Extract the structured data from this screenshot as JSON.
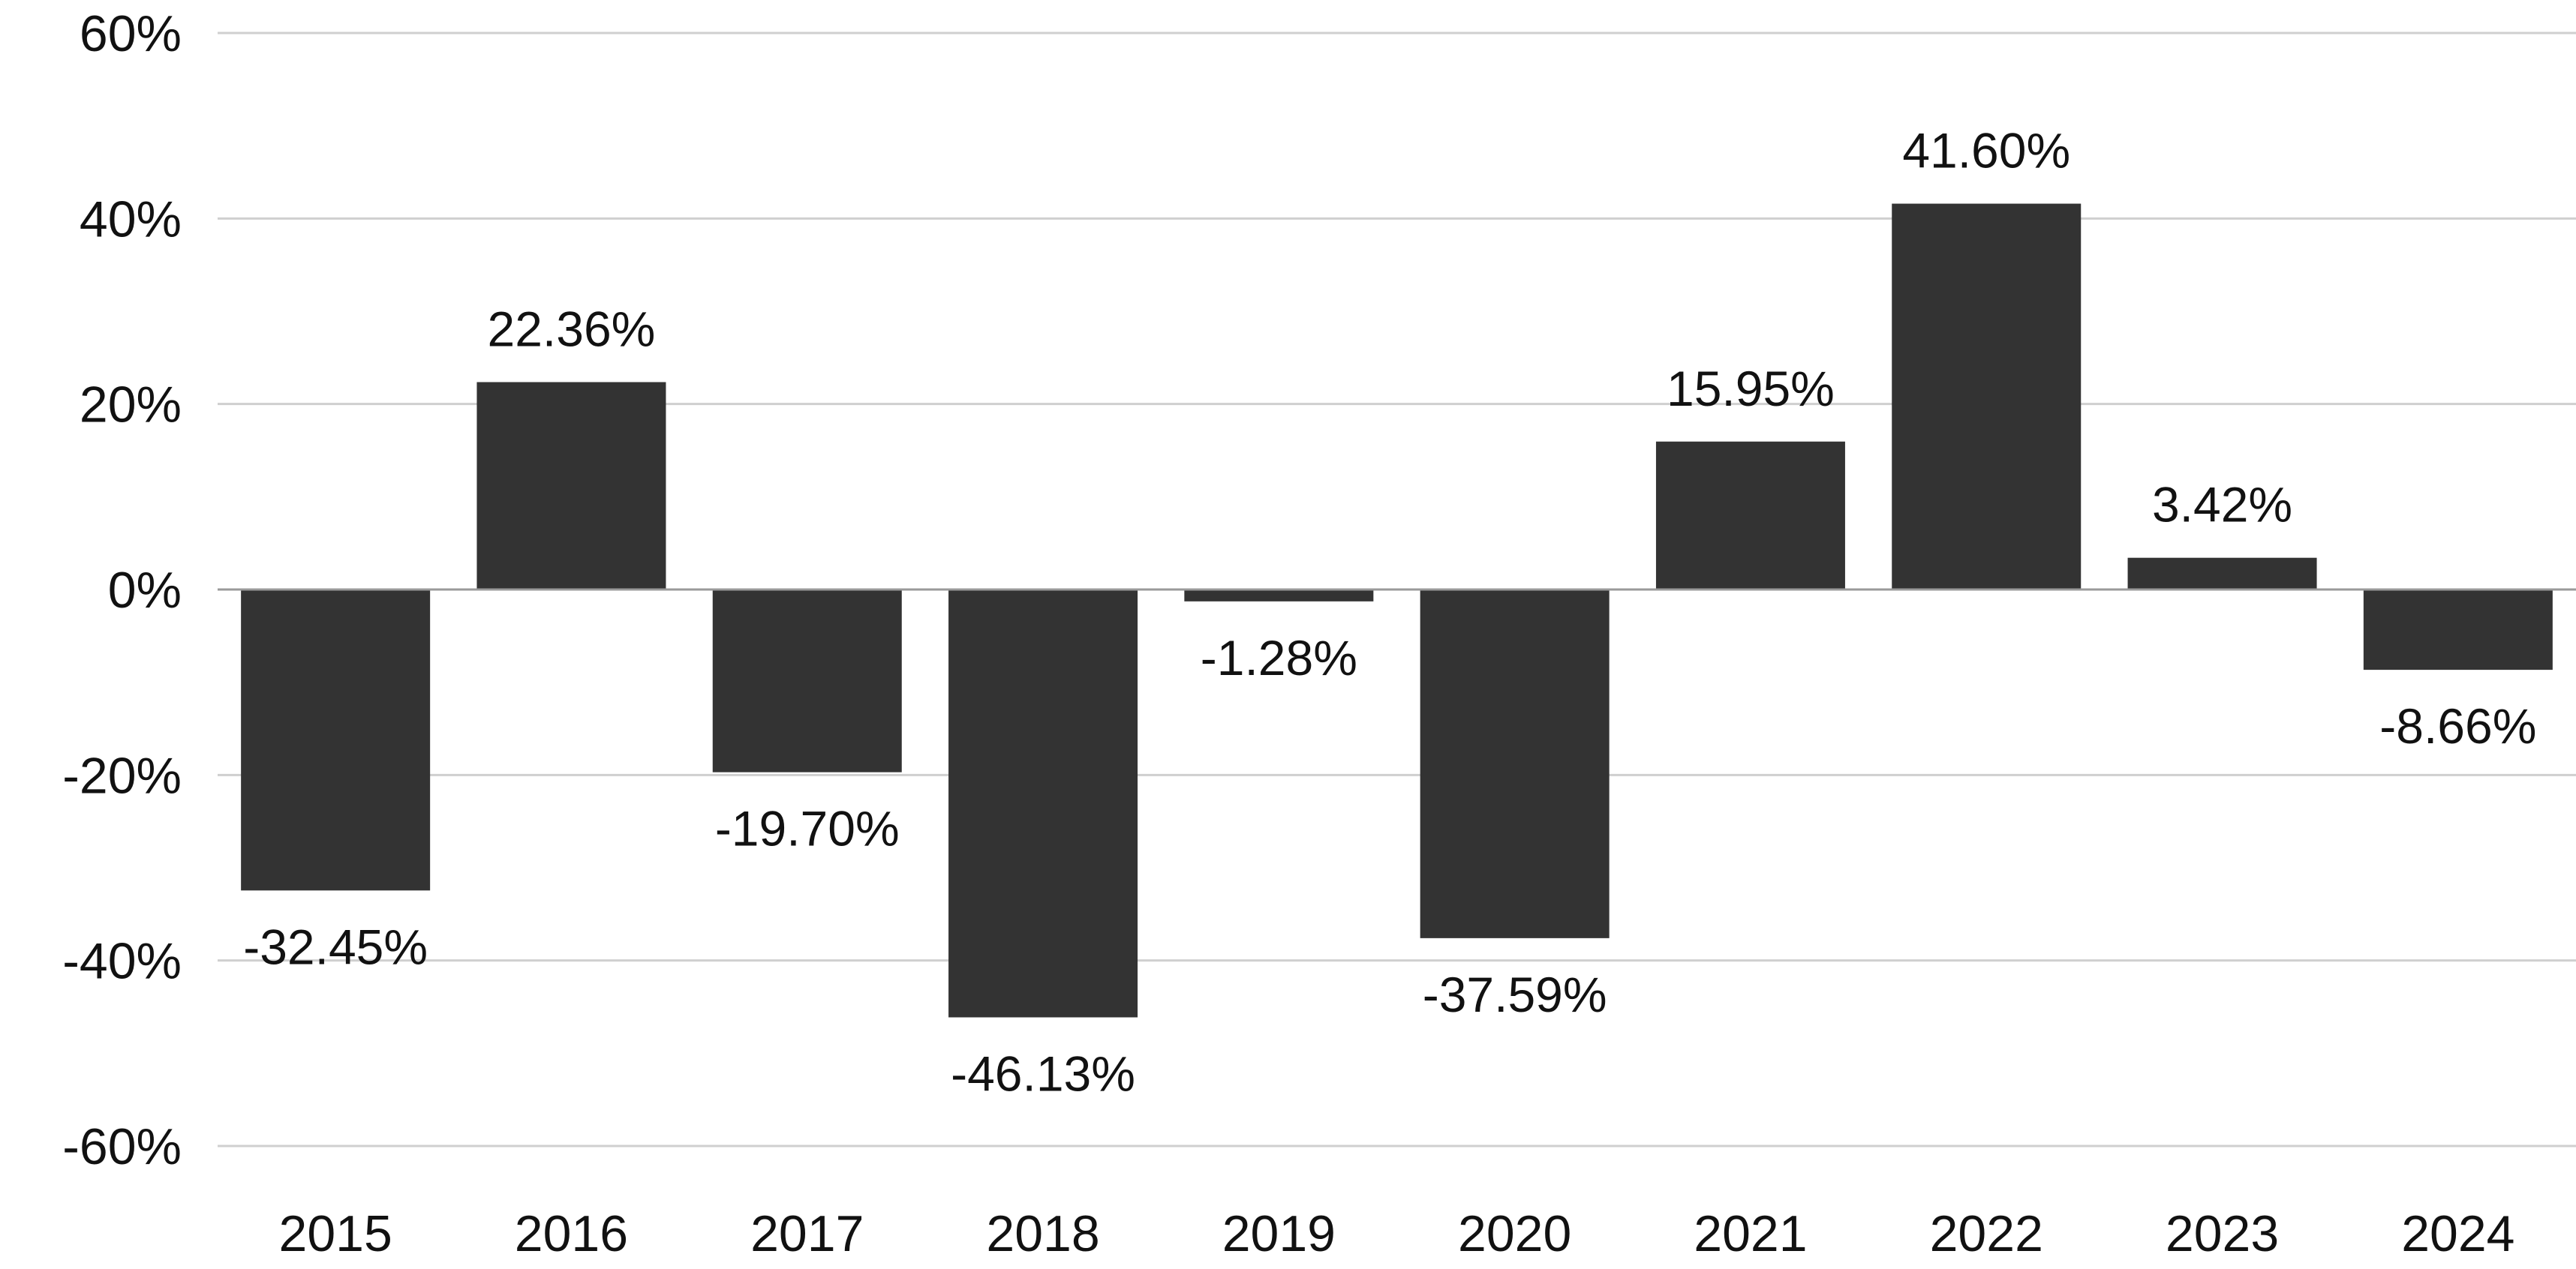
{
  "chart_data": {
    "type": "bar",
    "title": "",
    "xlabel": "",
    "ylabel": "",
    "categories": [
      "2015",
      "2016",
      "2017",
      "2018",
      "2019",
      "2020",
      "2021",
      "2022",
      "2023",
      "2024"
    ],
    "values": [
      -32.45,
      22.36,
      -19.7,
      -46.13,
      -1.28,
      -37.59,
      15.95,
      41.6,
      3.42,
      -8.66
    ],
    "data_labels": [
      "-32.45%",
      "22.36%",
      "-19.70%",
      "-46.13%",
      "-1.28%",
      "-37.59%",
      "15.95%",
      "41.60%",
      "3.42%",
      "-8.66%"
    ],
    "ylim": [
      -60,
      60
    ],
    "yticks": [
      60,
      40,
      20,
      0,
      -20,
      -40,
      -60
    ],
    "ytick_labels": [
      "60%",
      "40%",
      "20%",
      "0%",
      "-20%",
      "-40%",
      "-60%"
    ],
    "grid": true,
    "legend": "none",
    "bar_color": "#333333",
    "grid_color": "#cfcfcf",
    "zero_line_color": "#9a9a9a"
  }
}
